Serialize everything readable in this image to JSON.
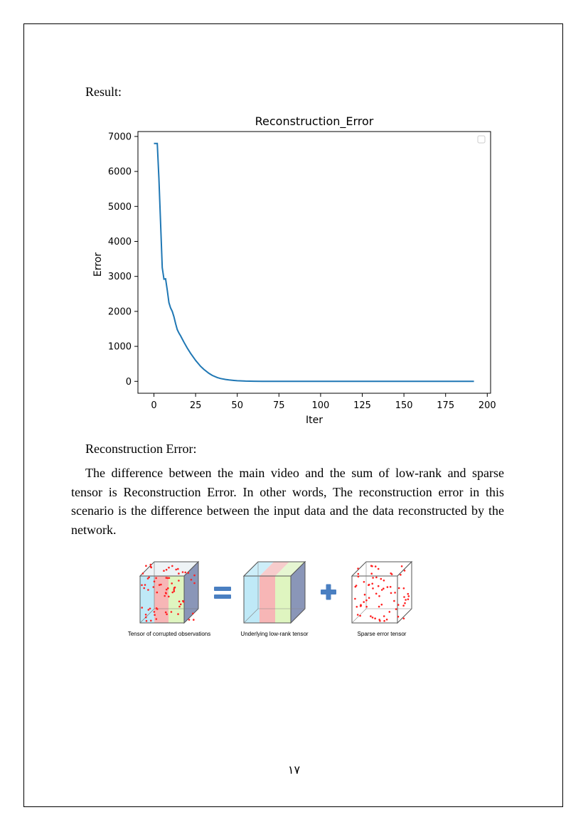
{
  "result_label": "Result:",
  "chart_data": {
    "type": "line",
    "title": "Reconstruction_Error",
    "xlabel": "Iter",
    "ylabel": "Error",
    "xlim": [
      -9.6,
      202
    ],
    "ylim": [
      -340,
      7140
    ],
    "xticks": [
      0,
      25,
      50,
      75,
      100,
      125,
      150,
      175,
      200
    ],
    "yticks": [
      0,
      1000,
      2000,
      3000,
      4000,
      5000,
      6000,
      7000
    ],
    "grid": false,
    "legend": "top-right (empty)",
    "line_color": "#1f77b4",
    "series": [
      {
        "x": [
          0,
          1,
          2,
          3,
          4,
          5,
          6,
          7,
          8,
          9,
          10,
          11,
          12,
          13,
          14,
          15,
          16,
          18,
          20,
          22,
          25,
          28,
          30,
          33,
          35,
          38,
          40,
          43,
          45,
          48,
          50,
          55,
          60,
          65,
          70,
          80,
          100,
          125,
          150,
          175,
          192
        ],
        "y": [
          6800,
          6800,
          6800,
          5800,
          4500,
          3250,
          2920,
          2930,
          2600,
          2250,
          2100,
          2000,
          1850,
          1650,
          1480,
          1380,
          1300,
          1120,
          950,
          800,
          600,
          430,
          340,
          230,
          170,
          110,
          80,
          55,
          40,
          25,
          18,
          8,
          4,
          2,
          1,
          0,
          0,
          0,
          0,
          0,
          0
        ]
      }
    ]
  },
  "section_label": "Reconstruction Error:",
  "paragraph": "The difference between the main video and the sum of low-rank and sparse tensor is Reconstruction Error. In other words, The reconstruction error in this scenario is the difference between the input data and the data reconstructed by the network.",
  "figure": {
    "captions": [
      "Tensor of corrupted observations",
      "Underlying low-rank tensor",
      "Sparse error tensor"
    ],
    "colors": {
      "cyan": "#bfe9f7",
      "pink": "#f7b6b6",
      "green": "#dff5c0",
      "navy": "#8a96b8",
      "operator": "#4a7fc1",
      "dot": "#ff2020"
    }
  },
  "page_number": "١٧"
}
